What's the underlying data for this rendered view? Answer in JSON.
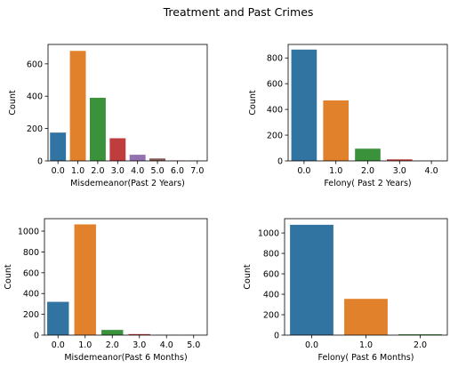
{
  "title": "Treatment and Past Crimes",
  "chart_data": [
    {
      "type": "bar",
      "categories": [
        "0.0",
        "1.0",
        "2.0",
        "3.0",
        "4.0",
        "5.0",
        "6.0",
        "7.0"
      ],
      "values": [
        175,
        680,
        390,
        140,
        38,
        15,
        3,
        2
      ],
      "xlabel": "Misdemeanor(Past 2 Years)",
      "ylabel": "Count",
      "ylim": [
        0,
        720
      ],
      "yticks": [
        0,
        200,
        400,
        600
      ],
      "colors": [
        "#3274a1",
        "#e1812c",
        "#3a923a",
        "#c03d3e",
        "#9372b2",
        "#845b53",
        "#d684bd",
        "#7f7f7f"
      ]
    },
    {
      "type": "bar",
      "categories": [
        "0.0",
        "1.0",
        "2.0",
        "3.0",
        "4.0"
      ],
      "values": [
        865,
        470,
        95,
        12,
        2
      ],
      "xlabel": "Felony( Past 2 Years)",
      "ylabel": "Count",
      "ylim": [
        0,
        905
      ],
      "yticks": [
        0,
        200,
        400,
        600,
        800
      ],
      "colors": [
        "#3274a1",
        "#e1812c",
        "#3a923a",
        "#c03d3e",
        "#9372b2"
      ]
    },
    {
      "type": "bar",
      "categories": [
        "0.0",
        "1.0",
        "2.0",
        "3.0",
        "4.0",
        "5.0"
      ],
      "values": [
        320,
        1065,
        50,
        10,
        2,
        1
      ],
      "xlabel": "Misdemeanor(Past 6 Months)",
      "ylabel": "Count",
      "ylim": [
        0,
        1120
      ],
      "yticks": [
        0,
        200,
        400,
        600,
        800,
        1000
      ],
      "colors": [
        "#3274a1",
        "#e1812c",
        "#3a923a",
        "#c03d3e",
        "#9372b2",
        "#845b53"
      ]
    },
    {
      "type": "bar",
      "categories": [
        "0.0",
        "1.0",
        "2.0"
      ],
      "values": [
        1080,
        355,
        8
      ],
      "xlabel": "Felony( Past 6 Months)",
      "ylabel": "Count",
      "ylim": [
        0,
        1140
      ],
      "yticks": [
        0,
        200,
        400,
        600,
        800,
        1000
      ],
      "colors": [
        "#3274a1",
        "#e1812c",
        "#3a923a"
      ]
    }
  ]
}
